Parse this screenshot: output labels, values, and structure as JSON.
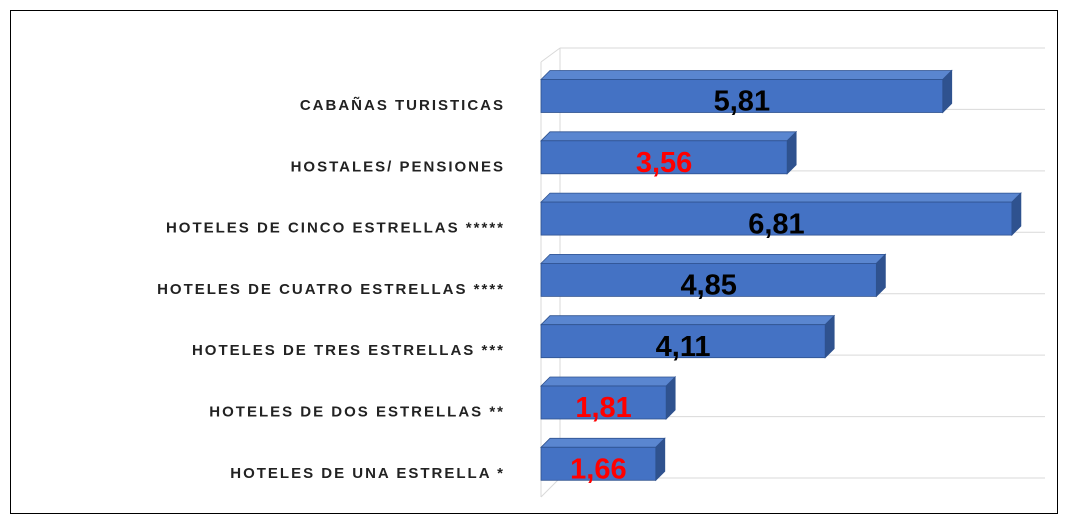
{
  "chart_data": {
    "type": "bar3d_horizontal",
    "categories": [
      "CABAÑAS TURISTICAS",
      "HOSTALES/ PENSIONES",
      "HOTELES DE CINCO ESTRELLAS *****",
      "HOTELES DE CUATRO ESTRELLAS ****",
      "HOTELES DE TRES ESTRELLAS ***",
      "HOTELES DE DOS ESTRELLAS **",
      "HOTELES DE UNA ESTRELLA *"
    ],
    "values": [
      5.81,
      3.56,
      6.81,
      4.85,
      4.11,
      1.81,
      1.66
    ],
    "value_labels": [
      "5,81",
      "3,56",
      "6,81",
      "4,85",
      "4,11",
      "1,81",
      "1,66"
    ],
    "value_label_colors": [
      "#000000",
      "#ff0000",
      "#000000",
      "#000000",
      "#000000",
      "#ff0000",
      "#ff0000"
    ],
    "color": "#4472c4",
    "xlim": [
      0,
      7
    ],
    "grid": true
  }
}
